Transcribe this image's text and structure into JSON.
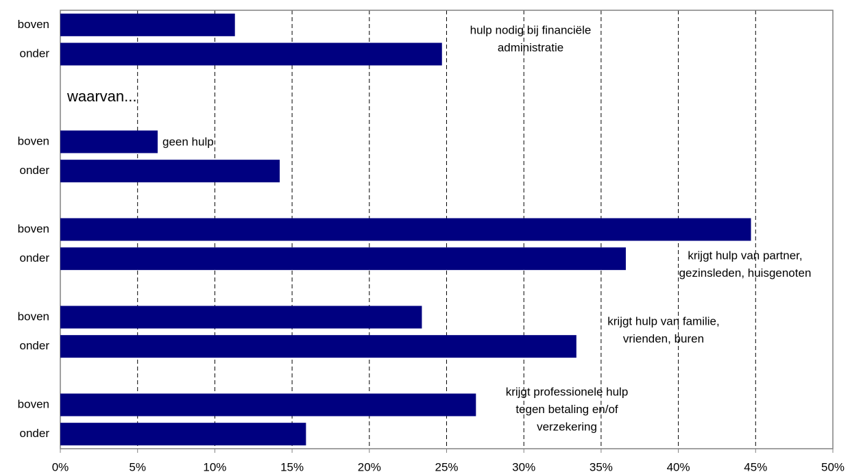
{
  "chart_data": {
    "type": "bar",
    "orientation": "horizontal",
    "categories": [
      "boven",
      "onder",
      null,
      null,
      "boven",
      "onder",
      null,
      "boven",
      "onder",
      null,
      "boven",
      "onder",
      null,
      "boven",
      "onder"
    ],
    "values": [
      11.3,
      24.7,
      null,
      null,
      6.3,
      14.2,
      null,
      44.7,
      36.6,
      null,
      23.4,
      33.4,
      null,
      26.9,
      15.9
    ],
    "color": "#000080",
    "xlim": [
      0,
      50
    ],
    "xticks": [
      {
        "value": 0,
        "label": "0%"
      },
      {
        "value": 5,
        "label": "5%"
      },
      {
        "value": 10,
        "label": "10%"
      },
      {
        "value": 15,
        "label": "15%"
      },
      {
        "value": 20,
        "label": "20%"
      },
      {
        "value": 25,
        "label": "25%"
      },
      {
        "value": 30,
        "label": "30%"
      },
      {
        "value": 35,
        "label": "35%"
      },
      {
        "value": 40,
        "label": "40%"
      },
      {
        "value": 45,
        "label": "45%"
      },
      {
        "value": 50,
        "label": "50%"
      }
    ],
    "grid": true,
    "annotations": [
      {
        "lines": [
          "hulp nodig bij financiële",
          "administratie"
        ]
      },
      {
        "lines": [
          "waarvan..."
        ]
      },
      {
        "lines": [
          "geen hulp"
        ]
      },
      {
        "lines": [
          "krijgt hulp van partner,",
          "gezinsleden, huisgenoten"
        ]
      },
      {
        "lines": [
          "krijgt hulp van familie,",
          "vrienden, buren"
        ]
      },
      {
        "lines": [
          "krijgt professionele hulp",
          "tegen betaling en/of",
          "verzekering"
        ]
      }
    ]
  }
}
